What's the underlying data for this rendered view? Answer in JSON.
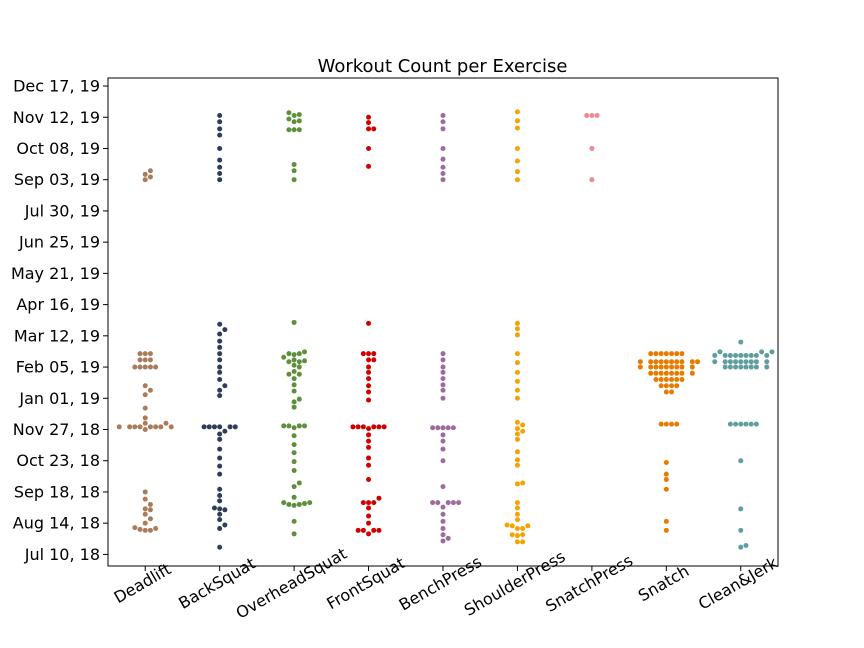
{
  "chart_data": {
    "type": "swarm",
    "title": "Workout Count per Exercise",
    "xlabel": "",
    "ylabel": "",
    "y_axis": {
      "kind": "date",
      "ylim": [
        "2018-06-27",
        "2019-12-26"
      ],
      "ticks": [
        {
          "value": "2018-07-10",
          "label": "Jul 10, 18"
        },
        {
          "value": "2018-08-14",
          "label": "Aug 14, 18"
        },
        {
          "value": "2018-09-18",
          "label": "Sep 18, 18"
        },
        {
          "value": "2018-10-23",
          "label": "Oct 23, 18"
        },
        {
          "value": "2018-11-27",
          "label": "Nov 27, 18"
        },
        {
          "value": "2019-01-01",
          "label": "Jan 01, 19"
        },
        {
          "value": "2019-02-05",
          "label": "Feb 05, 19"
        },
        {
          "value": "2019-03-12",
          "label": "Mar 12, 19"
        },
        {
          "value": "2019-04-16",
          "label": "Apr 16, 19"
        },
        {
          "value": "2019-05-21",
          "label": "May 21, 19"
        },
        {
          "value": "2019-06-25",
          "label": "Jun 25, 19"
        },
        {
          "value": "2019-07-30",
          "label": "Jul 30, 19"
        },
        {
          "value": "2019-09-03",
          "label": "Sep 03, 19"
        },
        {
          "value": "2019-10-08",
          "label": "Oct 08, 19"
        },
        {
          "value": "2019-11-12",
          "label": "Nov 12, 19"
        },
        {
          "value": "2019-12-17",
          "label": "Dec 17, 19"
        }
      ]
    },
    "categories": [
      "Deadlift",
      "BackSquat",
      "OverheadSquat",
      "FrontSquat",
      "BenchPress",
      "ShoulderPress",
      "SnatchPress",
      "Snatch",
      "Clean&Jerk"
    ],
    "series": [
      {
        "category": "Deadlift",
        "color": "#a97c5b",
        "dates": [
          "2018-08-06",
          "2018-08-06",
          "2018-08-07",
          "2018-08-08",
          "2018-08-09",
          "2018-08-14",
          "2018-08-19",
          "2018-08-24",
          "2018-08-29",
          "2018-08-30",
          "2018-09-04",
          "2018-09-10",
          "2018-09-18",
          "2018-11-27",
          "2018-11-30",
          "2018-11-30",
          "2018-11-30",
          "2018-11-30",
          "2018-11-30",
          "2018-11-30",
          "2018-11-30",
          "2018-11-30",
          "2018-12-04",
          "2018-12-04",
          "2018-12-10",
          "2018-12-21",
          "2019-01-05",
          "2019-01-10",
          "2019-01-15",
          "2019-02-05",
          "2019-02-05",
          "2019-02-05",
          "2019-02-05",
          "2019-02-05",
          "2019-02-13",
          "2019-02-13",
          "2019-02-13",
          "2019-02-20",
          "2019-02-20",
          "2019-02-20",
          "2019-09-03",
          "2019-09-06",
          "2019-09-09",
          "2019-09-13"
        ]
      },
      {
        "category": "BackSquat",
        "color": "#2e3d5c",
        "dates": [
          "2018-07-18",
          "2018-08-08",
          "2018-08-12",
          "2018-08-18",
          "2018-08-24",
          "2018-08-29",
          "2018-08-30",
          "2018-08-31",
          "2018-09-08",
          "2018-09-14",
          "2018-09-21",
          "2018-10-08",
          "2018-10-17",
          "2018-10-26",
          "2018-11-05",
          "2018-11-16",
          "2018-11-22",
          "2018-11-25",
          "2018-11-30",
          "2018-11-30",
          "2018-11-30",
          "2018-11-30",
          "2018-11-30",
          "2018-11-30",
          "2019-01-04",
          "2019-01-10",
          "2019-01-15",
          "2019-01-22",
          "2019-01-30",
          "2019-02-05",
          "2019-02-13",
          "2019-02-20",
          "2019-02-27",
          "2019-03-06",
          "2019-03-14",
          "2019-03-19",
          "2019-03-25",
          "2019-09-03",
          "2019-09-10",
          "2019-09-17",
          "2019-09-25",
          "2019-10-08",
          "2019-10-23",
          "2019-10-30",
          "2019-11-07",
          "2019-11-14"
        ]
      },
      {
        "category": "OverheadSquat",
        "color": "#5e8f3a",
        "dates": [
          "2018-08-02",
          "2018-08-16",
          "2018-09-03",
          "2018-09-04",
          "2018-09-04",
          "2018-09-05",
          "2018-09-06",
          "2018-09-06",
          "2018-09-12",
          "2018-09-24",
          "2018-09-28",
          "2018-10-12",
          "2018-10-22",
          "2018-11-01",
          "2018-11-10",
          "2018-11-20",
          "2018-11-29",
          "2018-12-01",
          "2018-12-01",
          "2018-12-01",
          "2018-12-01",
          "2018-12-22",
          "2018-12-28",
          "2018-12-31",
          "2019-01-09",
          "2019-01-16",
          "2019-01-23",
          "2019-01-28",
          "2019-01-28",
          "2019-01-31",
          "2019-02-05",
          "2019-02-07",
          "2019-02-11",
          "2019-02-11",
          "2019-02-12",
          "2019-02-13",
          "2019-02-16",
          "2019-02-19",
          "2019-02-20",
          "2019-02-20",
          "2019-02-22",
          "2019-03-27",
          "2019-09-03",
          "2019-09-13",
          "2019-09-20",
          "2019-10-29",
          "2019-10-29",
          "2019-10-29",
          "2019-11-07",
          "2019-11-08",
          "2019-11-10",
          "2019-11-14",
          "2019-11-15",
          "2019-11-17"
        ]
      },
      {
        "category": "FrontSquat",
        "color": "#d00000",
        "dates": [
          "2018-08-02",
          "2018-08-06",
          "2018-08-06",
          "2018-08-06",
          "2018-08-06",
          "2018-08-14",
          "2018-08-22",
          "2018-08-31",
          "2018-09-06",
          "2018-09-06",
          "2018-09-06",
          "2018-09-11",
          "2018-10-02",
          "2018-10-18",
          "2018-10-26",
          "2018-11-07",
          "2018-11-14",
          "2018-11-21",
          "2018-11-28",
          "2018-11-30",
          "2018-11-30",
          "2018-11-30",
          "2018-11-30",
          "2018-11-30",
          "2018-11-30",
          "2018-12-30",
          "2019-01-08",
          "2019-01-15",
          "2019-01-23",
          "2019-01-30",
          "2019-02-05",
          "2019-02-13",
          "2019-02-13",
          "2019-02-20",
          "2019-02-20",
          "2019-02-20",
          "2019-03-26",
          "2019-09-18",
          "2019-10-08",
          "2019-10-30",
          "2019-10-30",
          "2019-11-06",
          "2019-11-12"
        ]
      },
      {
        "category": "BenchPress",
        "color": "#9d6b9c",
        "dates": [
          "2018-07-25",
          "2018-07-28",
          "2018-08-01",
          "2018-08-08",
          "2018-08-16",
          "2018-08-24",
          "2018-09-01",
          "2018-09-06",
          "2018-09-06",
          "2018-09-06",
          "2018-09-06",
          "2018-09-06",
          "2018-09-24",
          "2018-10-23",
          "2018-11-05",
          "2018-11-14",
          "2018-11-21",
          "2018-11-29",
          "2018-11-29",
          "2018-11-29",
          "2018-11-29",
          "2018-11-29",
          "2019-01-01",
          "2019-01-10",
          "2019-01-16",
          "2019-01-23",
          "2019-01-30",
          "2019-02-05",
          "2019-02-13",
          "2019-02-20",
          "2019-09-03",
          "2019-09-10",
          "2019-09-17",
          "2019-09-26",
          "2019-10-08",
          "2019-10-30",
          "2019-11-07",
          "2019-11-14"
        ]
      },
      {
        "category": "ShoulderPress",
        "color": "#f4a300",
        "dates": [
          "2018-07-24",
          "2018-07-24",
          "2018-07-31",
          "2018-08-01",
          "2018-08-01",
          "2018-08-08",
          "2018-08-08",
          "2018-08-11",
          "2018-08-11",
          "2018-08-12",
          "2018-08-18",
          "2018-08-24",
          "2018-08-31",
          "2018-09-06",
          "2018-09-27",
          "2018-09-28",
          "2018-10-18",
          "2018-10-24",
          "2018-11-02",
          "2018-11-16",
          "2018-11-22",
          "2018-11-25",
          "2018-11-28",
          "2018-12-02",
          "2018-12-05",
          "2019-01-01",
          "2019-01-10",
          "2019-01-20",
          "2019-01-30",
          "2019-02-10",
          "2019-02-20",
          "2019-03-13",
          "2019-03-20",
          "2019-03-26",
          "2019-09-03",
          "2019-09-12",
          "2019-09-24",
          "2019-10-08",
          "2019-10-31",
          "2019-11-08",
          "2019-11-18"
        ]
      },
      {
        "category": "SnatchPress",
        "color": "#ee8a8f",
        "dates": [
          "2019-09-03",
          "2019-10-08",
          "2019-11-14",
          "2019-11-14",
          "2019-11-14"
        ]
      },
      {
        "category": "Snatch",
        "color": "#e87a00",
        "dates": [
          "2018-08-06",
          "2018-08-16",
          "2018-09-21",
          "2018-10-02",
          "2018-10-08",
          "2018-10-21",
          "2018-12-03",
          "2018-12-03",
          "2018-12-03",
          "2018-12-03",
          "2019-01-08",
          "2019-01-08",
          "2019-01-15",
          "2019-01-15",
          "2019-01-15",
          "2019-01-15",
          "2019-01-22",
          "2019-01-22",
          "2019-01-22",
          "2019-01-22",
          "2019-01-22",
          "2019-01-22",
          "2019-01-29",
          "2019-01-29",
          "2019-01-29",
          "2019-01-29",
          "2019-01-29",
          "2019-01-29",
          "2019-01-29",
          "2019-01-29",
          "2019-02-05",
          "2019-02-05",
          "2019-02-05",
          "2019-02-05",
          "2019-02-05",
          "2019-02-05",
          "2019-02-05",
          "2019-02-05",
          "2019-02-05",
          "2019-02-11",
          "2019-02-11",
          "2019-02-11",
          "2019-02-11",
          "2019-02-11",
          "2019-02-11",
          "2019-02-11",
          "2019-02-11",
          "2019-02-11",
          "2019-02-11",
          "2019-02-20",
          "2019-02-20",
          "2019-02-20",
          "2019-02-20",
          "2019-02-20",
          "2019-02-20",
          "2019-02-20"
        ]
      },
      {
        "category": "Clean&Jerk",
        "color": "#5f9ea0",
        "dates": [
          "2018-07-18",
          "2018-07-20",
          "2018-08-06",
          "2018-08-30",
          "2018-10-23",
          "2018-12-03",
          "2018-12-03",
          "2018-12-03",
          "2018-12-03",
          "2018-12-03",
          "2018-12-03",
          "2019-02-05",
          "2019-02-05",
          "2019-02-05",
          "2019-02-05",
          "2019-02-05",
          "2019-02-05",
          "2019-02-05",
          "2019-02-05",
          "2019-02-11",
          "2019-02-11",
          "2019-02-11",
          "2019-02-11",
          "2019-02-11",
          "2019-02-11",
          "2019-02-11",
          "2019-02-11",
          "2019-02-11",
          "2019-02-18",
          "2019-02-18",
          "2019-02-18",
          "2019-02-18",
          "2019-02-18",
          "2019-02-18",
          "2019-02-18",
          "2019-02-18",
          "2019-02-18",
          "2019-02-22",
          "2019-02-22",
          "2019-02-22",
          "2019-03-05"
        ]
      }
    ],
    "grid": false,
    "legend": "none"
  }
}
